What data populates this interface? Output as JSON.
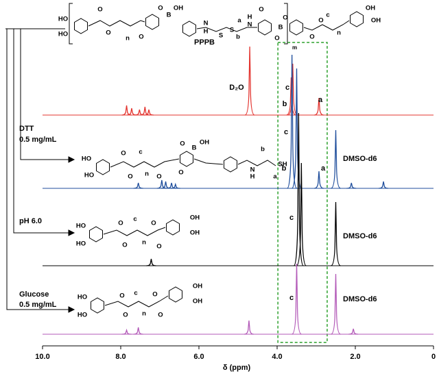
{
  "chart_data": {
    "type": "nmr",
    "xlim": [
      10,
      0
    ],
    "xticks": [
      {
        "value": 10,
        "label": "10.0"
      },
      {
        "value": 8,
        "label": "8.0"
      },
      {
        "value": 6,
        "label": "6.0"
      },
      {
        "value": 4,
        "label": "4.0"
      },
      {
        "value": 2,
        "label": "2.0"
      },
      0
    ],
    "xlabel": "δ (ppm)",
    "series": [
      {
        "name": "D₂O",
        "color": "#e3342f",
        "x": [
          7.85,
          7.72,
          7.52,
          7.38,
          7.28,
          4.7,
          3.64,
          3.6,
          2.93
        ],
        "values": [
          14,
          10,
          8,
          12,
          8,
          100,
          55,
          75,
          25
        ],
        "peak_labels": [
          "c",
          "b",
          "a"
        ]
      },
      {
        "name": "DMSO-d6",
        "color": "#1f4e9c",
        "x": [
          7.55,
          6.95,
          6.85,
          6.7,
          6.6,
          3.62,
          3.5,
          2.93,
          2.5,
          2.1,
          1.28
        ],
        "values": [
          8,
          12,
          10,
          8,
          6,
          195,
          175,
          25,
          85,
          8,
          10
        ],
        "peak_labels": [
          "c",
          "b",
          "a"
        ]
      },
      {
        "name": "DMSO-d6",
        "color": "#000000",
        "x": [
          7.22,
          3.45,
          3.38,
          2.5
        ],
        "values": [
          10,
          223,
          150,
          93
        ],
        "peak_labels": [
          "c"
        ]
      },
      {
        "name": "DMSO-d6",
        "color": "#b35ab8",
        "x": [
          7.85,
          7.55,
          4.72,
          3.5,
          2.5,
          2.05
        ],
        "values": [
          6,
          10,
          20,
          103,
          88,
          8
        ],
        "peak_labels": [
          "c"
        ]
      }
    ],
    "highlight_box": {
      "xlim": [
        3.98,
        2.72
      ],
      "color": "#2ca02c"
    }
  },
  "conditions": [
    {
      "reagent": "DTT",
      "amount": "0.5 mg/mL"
    },
    {
      "reagent": "pH 6.0"
    },
    {
      "reagent": "Glucose",
      "amount": "0.5 mg/mL"
    }
  ],
  "structures": [
    {
      "name": "PPPB",
      "repeat": "m",
      "labels": [
        "HO",
        "HO",
        "O",
        "O",
        "n",
        "O",
        "O",
        "B",
        "OH",
        "N",
        "H",
        "S",
        "S",
        "a",
        "b",
        "N",
        "H",
        "O",
        "B",
        "O",
        "O",
        "O",
        "c",
        "O",
        "n",
        "OH",
        "OH"
      ]
    },
    {
      "labels": [
        "HO",
        "HO",
        "O",
        "O",
        "c",
        "n",
        "O",
        "O",
        "B",
        "OH",
        "O",
        "N",
        "H",
        "b",
        "SH",
        "a"
      ]
    },
    {
      "labels": [
        "HO",
        "HO",
        "O",
        "O",
        "c",
        "n",
        "O",
        "O",
        "OH",
        "OH"
      ]
    },
    {
      "labels": [
        "HO",
        "HO",
        "O",
        "O",
        "c",
        "n",
        "O",
        "O",
        "OH",
        "OH"
      ]
    }
  ]
}
